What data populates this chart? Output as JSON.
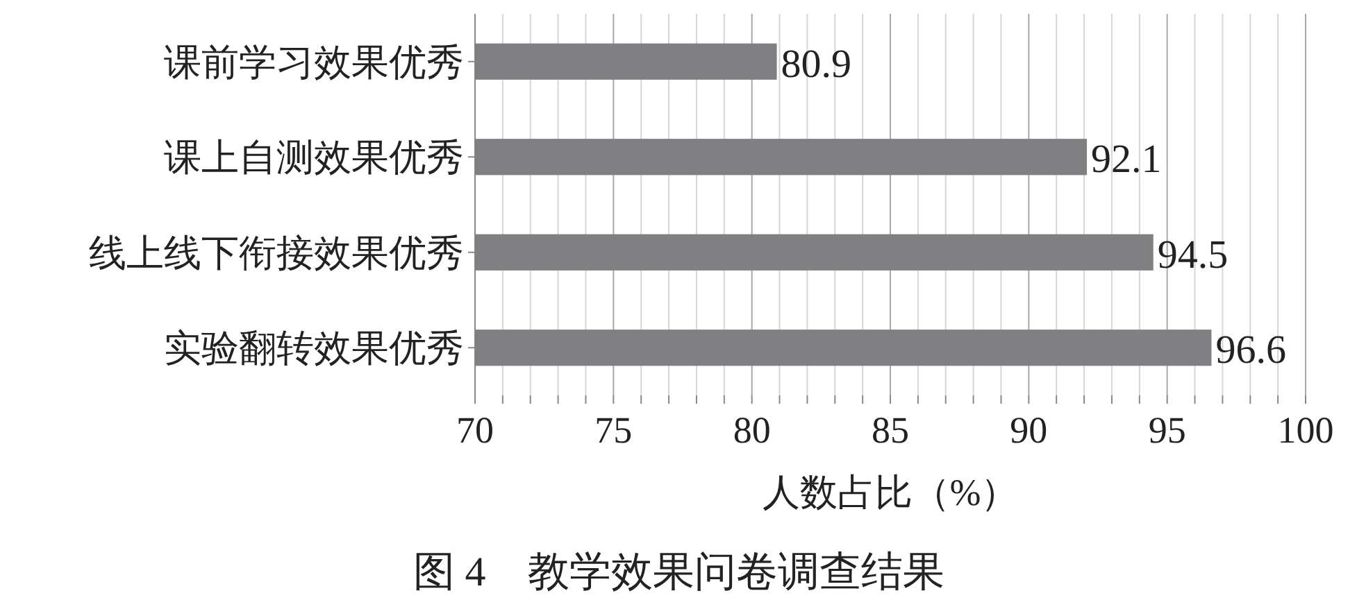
{
  "chart_data": {
    "type": "bar",
    "orientation": "horizontal",
    "title": "图 4　教学效果问卷调查结果",
    "xlabel": "人数占比（%）",
    "categories": [
      "课前学习效果优秀",
      "课上自测效果优秀",
      "线上线下衔接效果优秀",
      "实验翻转效果优秀"
    ],
    "values": [
      80.9,
      92.1,
      94.5,
      96.6
    ],
    "color": "#808083",
    "data_labels": true,
    "grid": "x",
    "xlim": [
      70,
      100
    ],
    "xticks": [
      70,
      {
        "value": 71,
        "label": null
      },
      {
        "value": 72,
        "label": null
      },
      {
        "value": 73,
        "label": null
      },
      {
        "value": 74,
        "label": null
      },
      75,
      {
        "value": 76,
        "label": null
      },
      {
        "value": 77,
        "label": null
      },
      {
        "value": 78,
        "label": null
      },
      {
        "value": 79,
        "label": null
      },
      80,
      {
        "value": 81,
        "label": null
      },
      {
        "value": 82,
        "label": null
      },
      {
        "value": 83,
        "label": null
      },
      {
        "value": 84,
        "label": null
      },
      85,
      {
        "value": 86,
        "label": null
      },
      {
        "value": 87,
        "label": null
      },
      {
        "value": 88,
        "label": null
      },
      {
        "value": 89,
        "label": null
      },
      90,
      {
        "value": 91,
        "label": null
      },
      {
        "value": 92,
        "label": null
      },
      {
        "value": 93,
        "label": null
      },
      {
        "value": 94,
        "label": null
      },
      95,
      {
        "value": 96,
        "label": null
      },
      {
        "value": 97,
        "label": null
      },
      {
        "value": 98,
        "label": null
      },
      {
        "value": 99,
        "label": null
      },
      100
    ]
  }
}
